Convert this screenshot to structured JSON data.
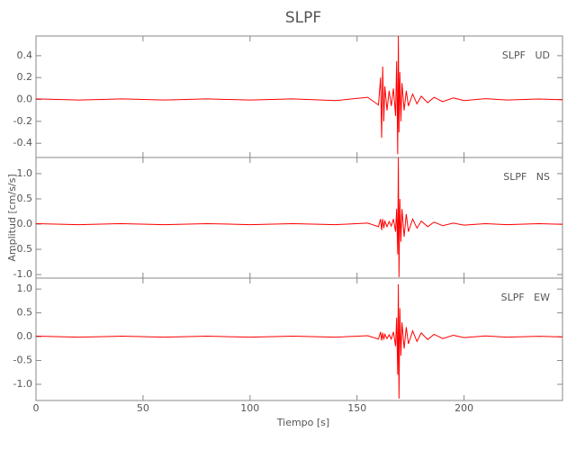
{
  "chart_data": {
    "type": "line",
    "title": "SLPF",
    "xlabel": "Tiempo [s]",
    "ylabel": "Amplitud [cm/s/s]",
    "color": "#ff0000",
    "xlim": [
      0,
      246
    ],
    "xticks": [
      0,
      50,
      100,
      150,
      200
    ],
    "x": [
      0,
      20,
      40,
      60,
      80,
      100,
      120,
      140,
      155,
      160,
      161,
      161.5,
      162,
      162.5,
      163,
      164,
      165,
      166,
      167,
      168,
      168.5,
      169,
      169.3,
      169.6,
      170,
      170.5,
      171,
      172,
      173,
      174,
      176,
      178,
      180,
      183,
      186,
      190,
      195,
      200,
      210,
      220,
      235,
      246
    ],
    "panels": [
      {
        "label": "SLPF   UD",
        "ylim": [
          -0.53,
          0.58
        ],
        "yticks": [
          -0.4,
          -0.2,
          {
            "value": 0,
            "label": "0.0"
          },
          0.2,
          0.4
        ],
        "values": [
          0.005,
          -0.005,
          0.005,
          -0.005,
          0.005,
          -0.005,
          0.005,
          -0.01,
          0.02,
          -0.05,
          0.2,
          -0.35,
          0.3,
          -0.2,
          0.12,
          -0.1,
          0.08,
          -0.06,
          0.1,
          -0.15,
          0.35,
          -0.5,
          0.58,
          -0.3,
          0.25,
          -0.2,
          0.15,
          -0.1,
          0.08,
          -0.06,
          0.05,
          -0.04,
          0.03,
          -0.03,
          0.02,
          -0.02,
          0.015,
          -0.01,
          0.008,
          -0.005,
          0.004,
          -0.003
        ]
      },
      {
        "label": "SLPF   NS",
        "ylim": [
          -1.07,
          1.32
        ],
        "yticks": [
          {
            "value": -1,
            "label": "-1.0"
          },
          -0.5,
          {
            "value": 0,
            "label": "0.0"
          },
          0.5,
          {
            "value": 1,
            "label": "1.0"
          }
        ],
        "values": [
          0.01,
          -0.01,
          0.01,
          -0.01,
          0.01,
          -0.01,
          0.01,
          -0.01,
          0.02,
          -0.05,
          0.1,
          -0.12,
          0.1,
          -0.08,
          0.06,
          -0.05,
          0.05,
          -0.04,
          0.1,
          -0.15,
          0.3,
          -0.6,
          1.32,
          -1.05,
          0.5,
          -0.35,
          0.3,
          -0.25,
          0.2,
          -0.15,
          0.1,
          -0.08,
          0.06,
          -0.05,
          0.04,
          -0.03,
          0.02,
          -0.02,
          0.01,
          -0.01,
          0.008,
          -0.005
        ]
      },
      {
        "label": "SLPF   EW",
        "ylim": [
          -1.34,
          1.23
        ],
        "yticks": [
          {
            "value": -1,
            "label": "-1.0"
          },
          -0.5,
          {
            "value": 0,
            "label": "0.0"
          },
          0.5,
          {
            "value": 1,
            "label": "1.0"
          }
        ],
        "values": [
          0.01,
          -0.01,
          0.01,
          -0.01,
          0.01,
          -0.01,
          0.01,
          -0.01,
          0.02,
          -0.05,
          0.1,
          -0.08,
          0.08,
          -0.06,
          0.05,
          -0.04,
          0.04,
          -0.05,
          0.1,
          -0.2,
          0.4,
          -0.8,
          1.1,
          -1.3,
          0.6,
          -0.4,
          0.3,
          -0.25,
          0.2,
          -0.15,
          0.12,
          -0.1,
          0.08,
          -0.06,
          0.05,
          -0.04,
          0.03,
          -0.02,
          0.015,
          -0.01,
          0.008,
          -0.005
        ]
      }
    ]
  }
}
